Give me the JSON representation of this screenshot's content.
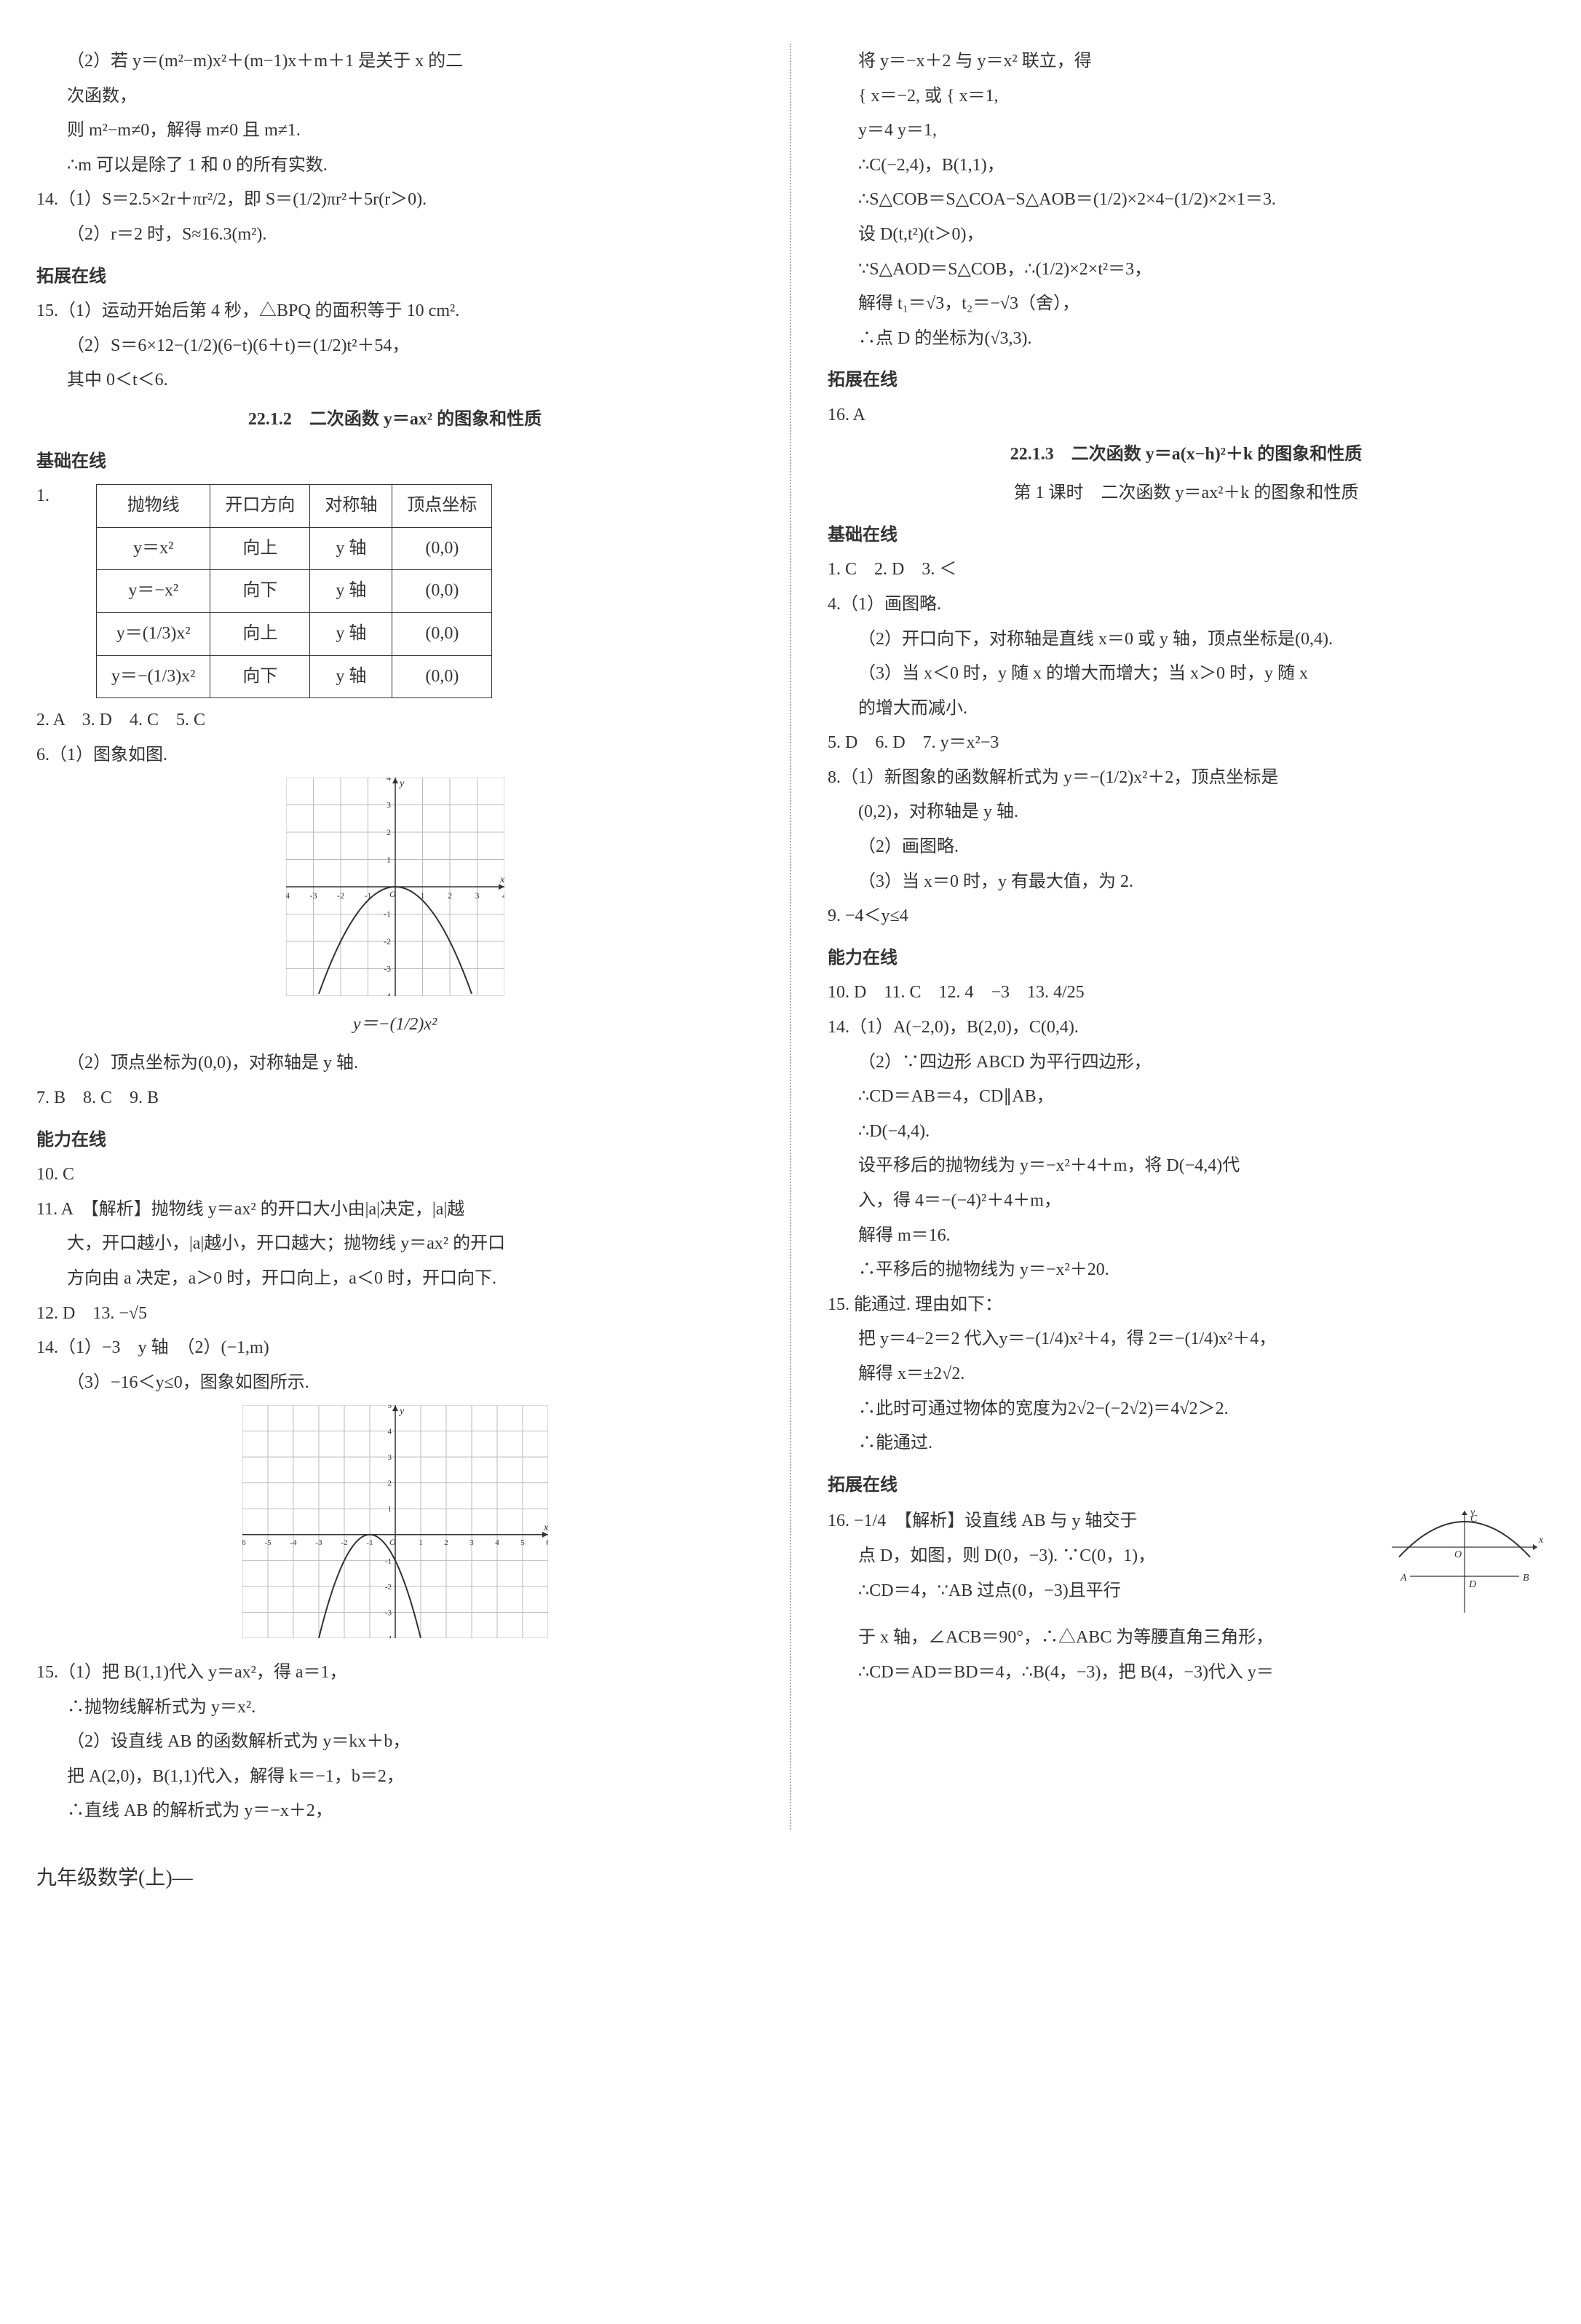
{
  "left": {
    "p1": "（2）若 y＝(m²−m)x²＋(m−1)x＋m＋1 是关于 x 的二",
    "p1b": "次函数，",
    "p2": "则 m²−m≠0，解得 m≠0 且 m≠1.",
    "p3": "∴m 可以是除了 1 和 0 的所有实数.",
    "p4": "14.（1）S＝2.5×2r＋πr²/2，即 S＝(1/2)πr²＋5r(r＞0).",
    "p5": "（2）r＝2 时，S≈16.3(m²).",
    "t1": "拓展在线",
    "p6": "15.（1）运动开始后第 4 秒，△BPQ 的面积等于 10 cm².",
    "p7": "（2）S＝6×12−(1/2)(6−t)(6＋t)＝(1/2)t²＋54，",
    "p8": "其中 0＜t＜6.",
    "h1": "22.1.2　二次函数 y＝ax² 的图象和性质",
    "t2": "基础在线",
    "q1": "1.",
    "tbl": {
      "head": [
        "抛物线",
        "开口方向",
        "对称轴",
        "顶点坐标"
      ],
      "rows": [
        [
          "y＝x²",
          "向上",
          "y 轴",
          "(0,0)"
        ],
        [
          "y＝−x²",
          "向下",
          "y 轴",
          "(0,0)"
        ],
        [
          "y＝(1/3)x²",
          "向上",
          "y 轴",
          "(0,0)"
        ],
        [
          "y＝−(1/3)x²",
          "向下",
          "y 轴",
          "(0,0)"
        ]
      ]
    },
    "p9": "2. A　3. D　4. C　5. C",
    "p10": "6.（1）图象如图.",
    "graph1_label": "y＝−(1/2)x²",
    "p11": "（2）顶点坐标为(0,0)，对称轴是 y 轴.",
    "p12": "7. B　8. C　9. B",
    "t3": "能力在线",
    "p13": "10. C",
    "p14": "11. A　【解析】抛物线 y＝ax² 的开口大小由|a|决定，|a|越",
    "p14b": "大，开口越小，|a|越小，开口越大；抛物线 y＝ax² 的开口",
    "p14c": "方向由 a 决定，a＞0 时，开口向上，a＜0 时，开口向下.",
    "p15": "12. D　13. −√5",
    "p16": "14.（1）−3　y 轴　（2）(−1,m)",
    "p17": "（3）−16＜y≤0，图象如图所示.",
    "p18": "15.（1）把 B(1,1)代入 y＝ax²，得 a＝1，",
    "p19": "∴抛物线解析式为 y＝x².",
    "p20": "（2）设直线 AB 的函数解析式为 y＝kx＋b，",
    "p21": "把 A(2,0)，B(1,1)代入，解得 k＝−1，b＝2，",
    "p22": "∴直线 AB 的解析式为 y＝−x＋2，"
  },
  "right": {
    "p1": "将 y＝−x＋2 与 y＝x² 联立，得",
    "p2": "{ x＝−2,  或  { x＝1,",
    "p2b": "  y＝4        y＝1,",
    "p3": "∴C(−2,4)，B(1,1)，",
    "p4": "∴S△COB＝S△COA−S△AOB＝(1/2)×2×4−(1/2)×2×1＝3.",
    "p5": "设 D(t,t²)(t＞0)，",
    "p6": "∵S△AOD＝S△COB，∴(1/2)×2×t²＝3，",
    "p7": "解得 t₁＝√3，t₂＝−√3（舍），",
    "p8": "∴点 D 的坐标为(√3,3).",
    "t1": "拓展在线",
    "p9": "16. A",
    "h1": "22.1.3　二次函数 y＝a(x−h)²＋k 的图象和性质",
    "h2": "第 1 课时　二次函数 y＝ax²＋k 的图象和性质",
    "t2": "基础在线",
    "p10": "1. C　2. D　3. ＜",
    "p11": "4.（1）画图略.",
    "p12": "（2）开口向下，对称轴是直线 x＝0 或 y 轴，顶点坐标是(0,4).",
    "p13": "（3）当 x＜0 时，y 随 x 的增大而增大；当 x＞0 时，y 随 x",
    "p13b": "的增大而减小.",
    "p14": "5. D　6. D　7. y＝x²−3",
    "p15": "8.（1）新图象的函数解析式为 y＝−(1/2)x²＋2，顶点坐标是",
    "p16": "(0,2)，对称轴是 y 轴.",
    "p17": "（2）画图略.",
    "p18": "（3）当 x＝0 时，y 有最大值，为 2.",
    "p19": "9. −4＜y≤4",
    "t3": "能力在线",
    "p20": "10. D　11. C　12. 4　−3　13. 4/25",
    "p21": "14.（1）A(−2,0)，B(2,0)，C(0,4).",
    "p22": "（2）∵四边形 ABCD 为平行四边形，",
    "p23": "∴CD＝AB＝4，CD∥AB，",
    "p24": "∴D(−4,4).",
    "p25": "设平移后的抛物线为 y＝−x²＋4＋m，将 D(−4,4)代",
    "p25b": "入，得 4＝−(−4)²＋4＋m，",
    "p26": "解得 m＝16.",
    "p27": "∴平移后的抛物线为 y＝−x²＋20.",
    "p28": "15. 能通过. 理由如下：",
    "p29": "把 y＝4−2＝2 代入y＝−(1/4)x²＋4，得 2＝−(1/4)x²＋4，",
    "p30": "解得 x＝±2√2.",
    "p31": "∴此时可通过物体的宽度为2√2−(−2√2)＝4√2＞2.",
    "p32": "∴能通过.",
    "t4": "拓展在线",
    "p33": "16. −1/4　【解析】设直线 AB 与 y 轴交于",
    "p34": "点 D，如图，则 D(0，−3). ∵C(0，1)，",
    "p35": "∴CD＝4，∵AB 过点(0，−3)且平行",
    "p36": "于 x 轴，∠ACB＝90°，∴△ABC 为等腰直角三角形，",
    "p37": "∴CD＝AD＝BD＝4，∴B(4，−3)，把 B(4，−3)代入 y＝"
  },
  "footer": "九年级数学(上)—",
  "graph1": {
    "xrange": [
      -4,
      4
    ],
    "yrange": [
      -4,
      4
    ],
    "ticks_x": [
      -4,
      -3,
      -2,
      -1,
      1,
      2,
      3,
      4
    ],
    "ticks_y": [
      -4,
      -3,
      -2,
      -1,
      1,
      2,
      3,
      4
    ],
    "parabola_a": -0.5,
    "grid_color": "#bbb",
    "axis_color": "#333",
    "curve_color": "#333"
  },
  "graph2": {
    "xrange": [
      -6,
      6
    ],
    "yrange": [
      -4,
      5
    ],
    "ticks_x": [
      -6,
      -5,
      -4,
      -3,
      -2,
      -1,
      1,
      2,
      3,
      4,
      5,
      6
    ],
    "ticks_y": [
      -4,
      -3,
      -2,
      -1,
      1,
      2,
      3,
      4,
      5
    ],
    "parabola_a": -1,
    "shift_x": 1,
    "grid_color": "#bbb",
    "axis_color": "#333",
    "curve_color": "#333"
  },
  "graph3": {
    "x_axis": "x",
    "y_axis": "y",
    "curve_color": "#333",
    "labels": {
      "A": "A",
      "B": "B",
      "C": "C",
      "D": "D",
      "O": "O"
    }
  }
}
